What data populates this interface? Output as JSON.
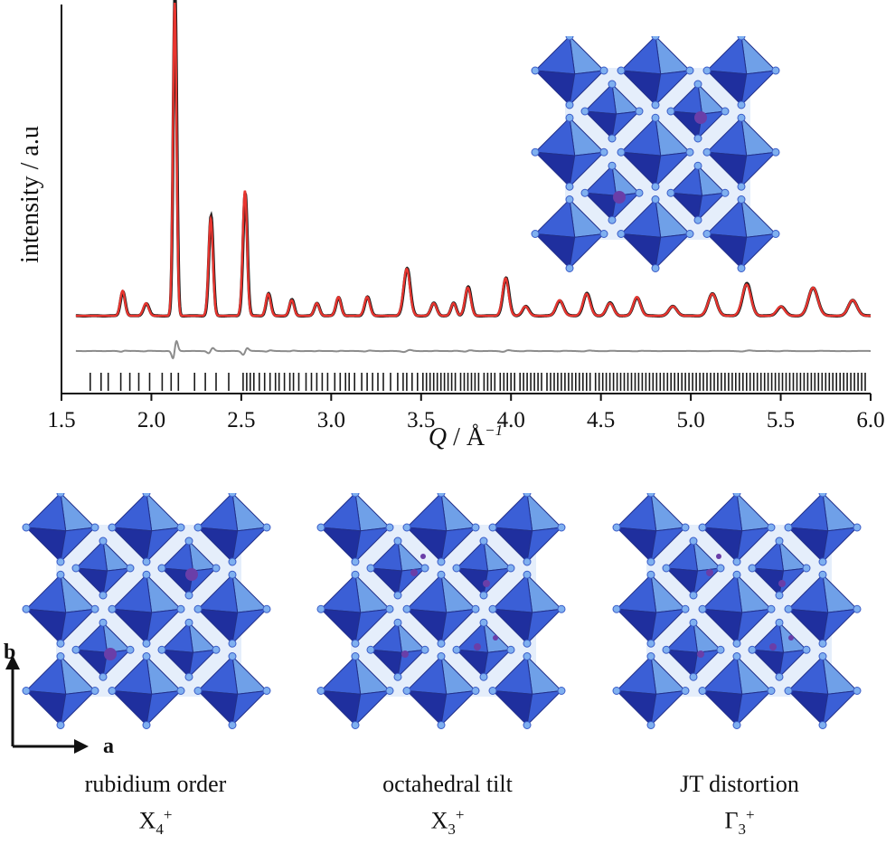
{
  "chart_data": {
    "type": "line",
    "xlabel_symbol": "Q",
    "xlabel_unit": " / Å",
    "xlabel_exp": "−1",
    "ylabel": "intensity / a.u",
    "xlim": [
      1.5,
      6.0
    ],
    "xticks": [
      "1.5",
      "2.0",
      "2.5",
      "3.0",
      "3.5",
      "4.0",
      "4.5",
      "5.0",
      "5.5",
      "6.0"
    ],
    "background": 0.02,
    "peaks": [
      {
        "x": 1.84,
        "h": 0.08,
        "w": 0.013
      },
      {
        "x": 1.97,
        "h": 0.04,
        "w": 0.015
      },
      {
        "x": 2.13,
        "h": 1.0,
        "w": 0.01
      },
      {
        "x": 2.33,
        "h": 0.31,
        "w": 0.012
      },
      {
        "x": 2.52,
        "h": 0.4,
        "w": 0.012
      },
      {
        "x": 2.65,
        "h": 0.07,
        "w": 0.013
      },
      {
        "x": 2.78,
        "h": 0.05,
        "w": 0.013
      },
      {
        "x": 2.92,
        "h": 0.04,
        "w": 0.014
      },
      {
        "x": 3.04,
        "h": 0.06,
        "w": 0.014
      },
      {
        "x": 3.2,
        "h": 0.06,
        "w": 0.015
      },
      {
        "x": 3.42,
        "h": 0.15,
        "w": 0.018
      },
      {
        "x": 3.57,
        "h": 0.04,
        "w": 0.016
      },
      {
        "x": 3.68,
        "h": 0.04,
        "w": 0.014
      },
      {
        "x": 3.76,
        "h": 0.09,
        "w": 0.016
      },
      {
        "x": 3.97,
        "h": 0.12,
        "w": 0.017
      },
      {
        "x": 4.08,
        "h": 0.03,
        "w": 0.018
      },
      {
        "x": 4.27,
        "h": 0.05,
        "w": 0.02
      },
      {
        "x": 4.42,
        "h": 0.07,
        "w": 0.02
      },
      {
        "x": 4.55,
        "h": 0.04,
        "w": 0.02
      },
      {
        "x": 4.7,
        "h": 0.06,
        "w": 0.02
      },
      {
        "x": 4.9,
        "h": 0.03,
        "w": 0.022
      },
      {
        "x": 5.12,
        "h": 0.07,
        "w": 0.024
      },
      {
        "x": 5.31,
        "h": 0.1,
        "w": 0.024
      },
      {
        "x": 5.5,
        "h": 0.03,
        "w": 0.022
      },
      {
        "x": 5.68,
        "h": 0.09,
        "w": 0.026
      },
      {
        "x": 5.9,
        "h": 0.05,
        "w": 0.024
      }
    ],
    "series": [
      {
        "role": "observed",
        "color": "#1a1a1a"
      },
      {
        "role": "calculated",
        "color": "#e8352f"
      },
      {
        "role": "difference",
        "color": "#8c8c8c"
      },
      {
        "role": "reflection ticks",
        "color": "#1a1a1a"
      }
    ],
    "tick_positions": [
      1.66,
      1.72,
      1.76,
      1.83,
      1.88,
      1.93,
      1.99,
      2.06,
      2.11,
      2.15,
      2.24,
      2.3,
      2.36,
      2.43,
      2.51,
      2.53,
      2.55,
      2.57,
      2.6,
      2.63,
      2.66,
      2.69,
      2.71,
      2.74,
      2.77,
      2.79,
      2.82,
      2.86,
      2.89,
      2.92,
      2.95,
      2.98,
      3.02,
      3.05,
      3.08,
      3.1,
      3.13,
      3.17,
      3.2,
      3.23,
      3.26,
      3.29,
      3.33,
      3.37,
      3.4,
      3.42,
      3.45,
      3.48,
      3.51,
      3.53,
      3.55,
      3.57,
      3.59,
      3.61,
      3.63,
      3.65,
      3.67,
      3.69,
      3.72,
      3.74,
      3.76,
      3.78,
      3.8,
      3.82,
      3.85,
      3.87,
      3.89,
      3.91,
      3.94,
      3.96,
      3.98,
      4.0,
      4.02,
      4.05,
      4.07,
      4.09,
      4.11,
      4.13,
      4.15,
      4.17,
      4.2,
      4.22,
      4.24,
      4.26,
      4.28,
      4.3,
      4.32,
      4.34,
      4.36,
      4.38,
      4.4,
      4.42,
      4.44,
      4.47,
      4.49,
      4.51,
      4.53,
      4.55,
      4.57,
      4.59,
      4.61,
      4.63,
      4.65,
      4.67,
      4.69,
      4.71,
      4.73,
      4.75,
      4.77,
      4.79,
      4.81,
      4.83,
      4.85,
      4.87,
      4.89,
      4.91,
      4.93,
      4.95,
      4.97,
      4.99,
      5.01,
      5.03,
      5.05,
      5.07,
      5.09,
      5.11,
      5.13,
      5.15,
      5.17,
      5.19,
      5.21,
      5.23,
      5.25,
      5.27,
      5.29,
      5.31,
      5.33,
      5.35,
      5.37,
      5.39,
      5.41,
      5.43,
      5.45,
      5.47,
      5.49,
      5.51,
      5.53,
      5.55,
      5.57,
      5.59,
      5.61,
      5.63,
      5.65,
      5.67,
      5.69,
      5.71,
      5.73,
      5.75,
      5.77,
      5.79,
      5.81,
      5.83,
      5.85,
      5.87,
      5.89,
      5.91,
      5.93,
      5.95,
      5.97
    ]
  },
  "structures": [
    {
      "caption": "rubidium order",
      "irrep_base": "X",
      "irrep_sub": "4",
      "irrep_sup": "+"
    },
    {
      "caption": "octahedral tilt",
      "irrep_base": "X",
      "irrep_sub": "3",
      "irrep_sup": "+"
    },
    {
      "caption": "JT distortion",
      "irrep_base": "Γ",
      "irrep_sub": "3",
      "irrep_sup": "+"
    }
  ],
  "lattice_axes": {
    "vertical": "b",
    "horizontal": "a"
  },
  "colors": {
    "octahedron_dark": "#1f2f9e",
    "octahedron_mid": "#3b5fd6",
    "octahedron_light": "#6fa0e8",
    "atom": "#6a3ea8"
  }
}
